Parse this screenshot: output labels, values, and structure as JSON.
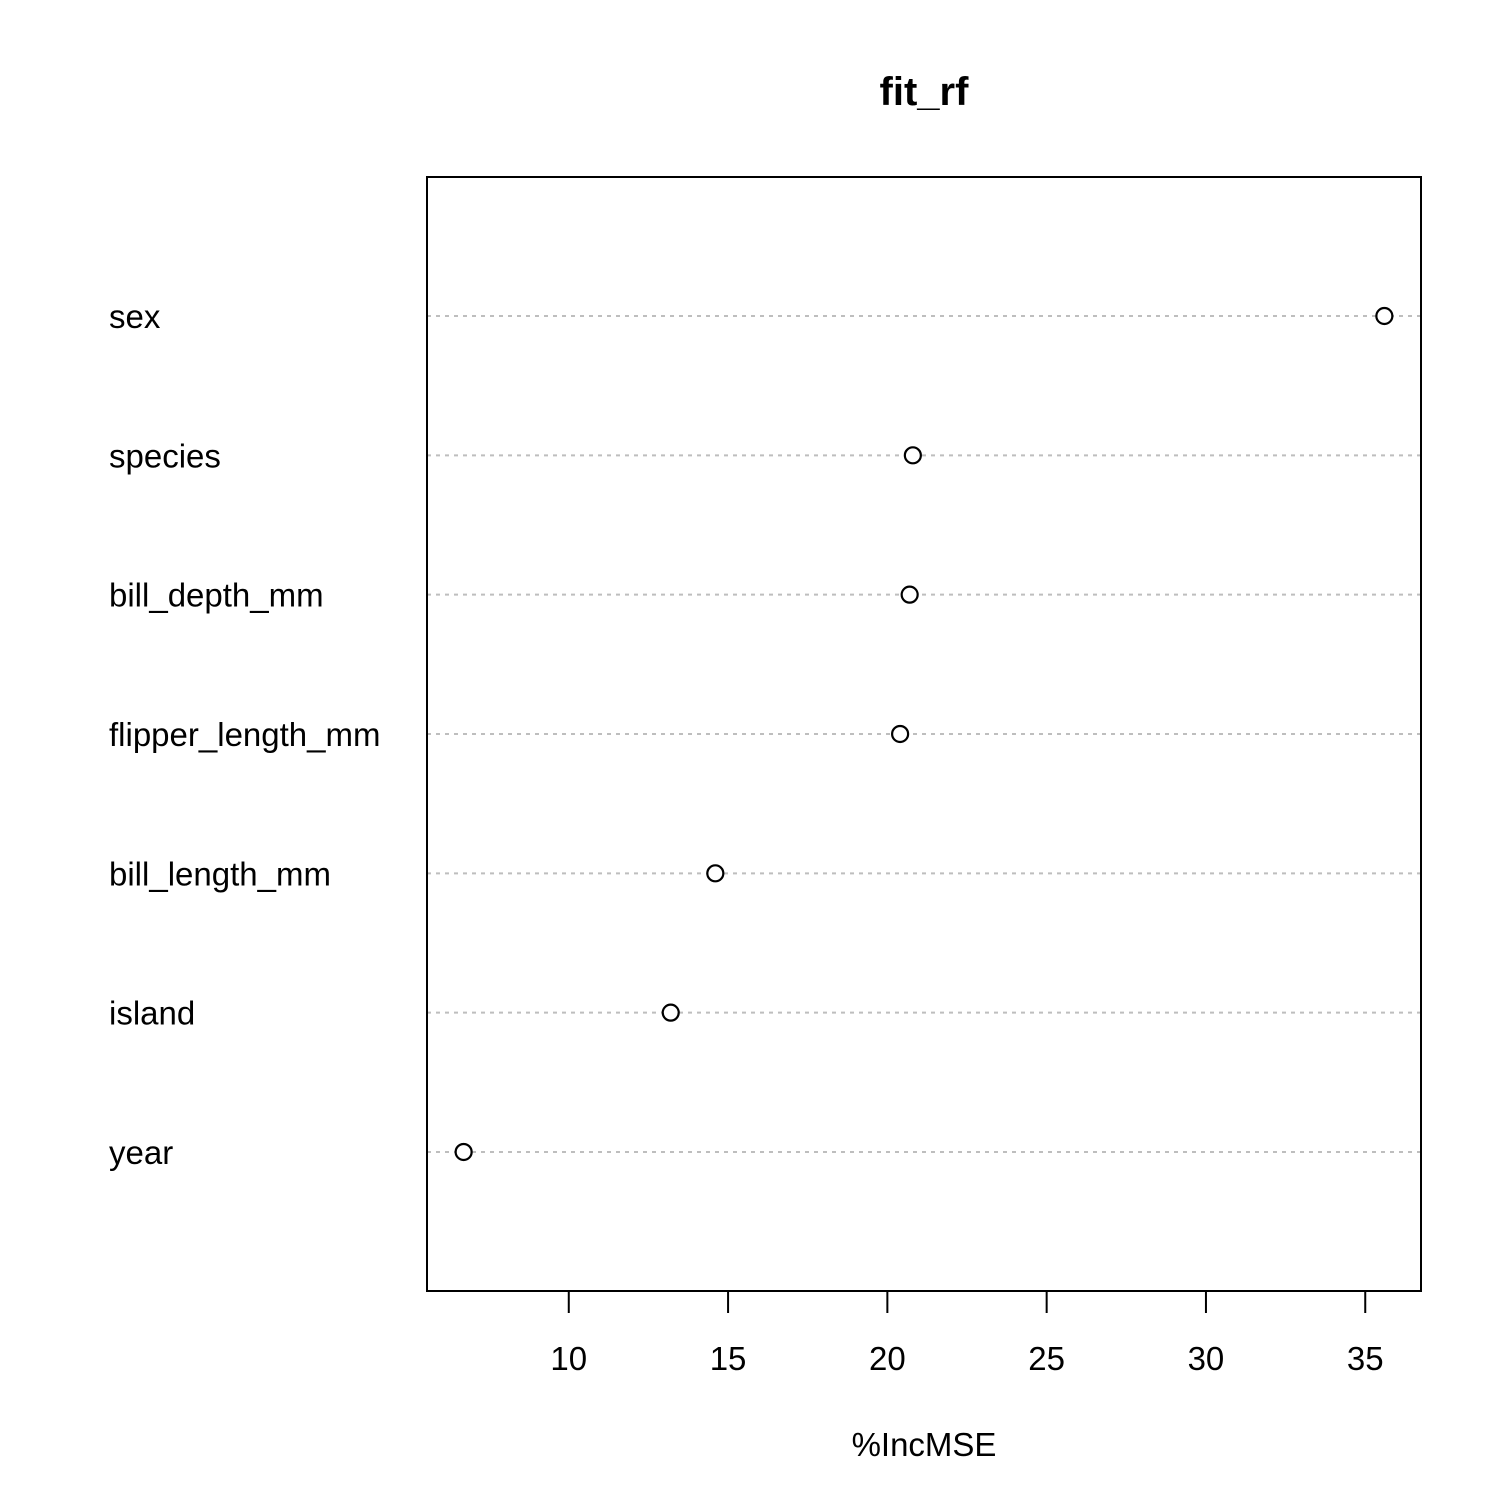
{
  "chart_data": {
    "type": "scatter",
    "title": "fit_rf",
    "xlabel": "%IncMSE",
    "ylabel": "",
    "categories": [
      "sex",
      "species",
      "bill_depth_mm",
      "flipper_length_mm",
      "bill_length_mm",
      "island",
      "year"
    ],
    "values": [
      35.6,
      20.8,
      20.7,
      20.4,
      14.6,
      13.2,
      6.7
    ],
    "xlim": [
      5.55,
      36.75
    ],
    "xticks": [
      10,
      15,
      20,
      25,
      30,
      35
    ],
    "grid": "dotted horizontal guide lines per category",
    "legend": "none",
    "point_color": "#000000",
    "guide_color": "#bebebe"
  }
}
